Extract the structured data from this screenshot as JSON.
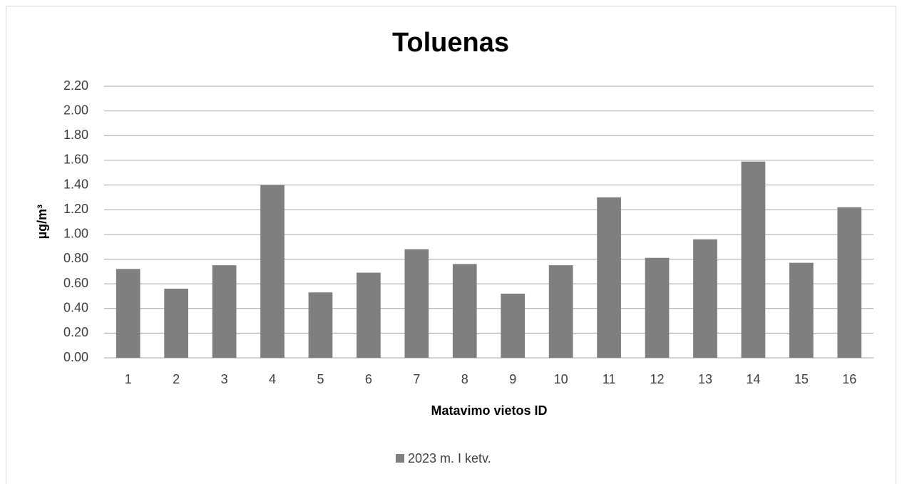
{
  "chart_data": {
    "type": "bar",
    "title": "Toluenas",
    "x_label": "Matavimo vietos ID",
    "y_label": "µg/m³",
    "categories": [
      "1",
      "2",
      "3",
      "4",
      "5",
      "6",
      "7",
      "8",
      "9",
      "10",
      "11",
      "12",
      "13",
      "14",
      "15",
      "16"
    ],
    "series": [
      {
        "name": "2023 m. I ketv.",
        "color": "#7f7f7f",
        "values": [
          0.72,
          0.56,
          0.75,
          1.4,
          0.53,
          0.69,
          0.88,
          0.76,
          0.52,
          0.75,
          1.3,
          0.81,
          0.96,
          1.59,
          0.77,
          1.22
        ]
      }
    ],
    "ylim": [
      0,
      2.2
    ],
    "yticks": [
      {
        "value": 0,
        "label": "0.00"
      },
      {
        "value": 0.2,
        "label": "0.20"
      },
      {
        "value": 0.4,
        "label": "0.40"
      },
      {
        "value": 0.6,
        "label": "0.60"
      },
      {
        "value": 0.8,
        "label": "0.80"
      },
      {
        "value": 1.0,
        "label": "1.00"
      },
      {
        "value": 1.2,
        "label": "1.20"
      },
      {
        "value": 1.4,
        "label": "1.40"
      },
      {
        "value": 1.6,
        "label": "1.60"
      },
      {
        "value": 1.8,
        "label": "1.80"
      },
      {
        "value": 2.0,
        "label": "2.00"
      },
      {
        "value": 2.2,
        "label": "2.20"
      }
    ],
    "grid": true,
    "legend": "bottom"
  }
}
